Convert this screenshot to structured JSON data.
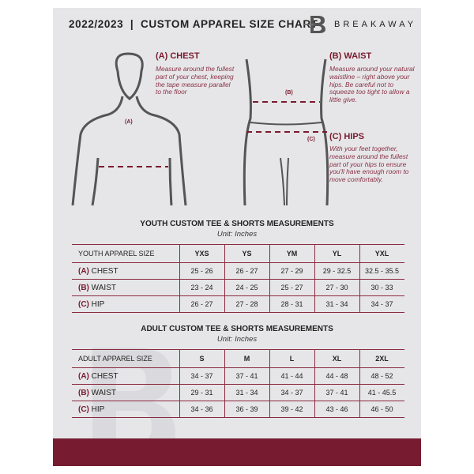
{
  "header": {
    "title": "2022/2023  |  CUSTOM APPAREL SIZE CHART",
    "brand": "BREAKAWAY",
    "logo_letter": "B"
  },
  "guide": {
    "chest": {
      "heading": "(A) CHEST",
      "marker": "(A)",
      "text": "Measure around the fullest part of your chest, keeping the tape measure parallel to the floor"
    },
    "waist": {
      "heading": "(B) WAIST",
      "marker": "(B)",
      "text": "Measure around your natural waistline – right above your hips. Be careful not to squeeze too tight to allow a little give."
    },
    "hips": {
      "heading": "(C) HIPS",
      "marker": "(C)",
      "text": "With your feet together, measure around the fullest part of your hips to ensure you'll have enough room to move comfortably."
    }
  },
  "youth": {
    "title": "YOUTH CUSTOM TEE & SHORTS MEASUREMENTS",
    "unit": "Unit: Inches",
    "header": "YOUTH APPAREL SIZE",
    "sizes": [
      "YXS",
      "YS",
      "YM",
      "YL",
      "YXL"
    ],
    "rows": [
      {
        "letter": "(A)",
        "name": "CHEST",
        "values": [
          "25 - 26",
          "26 - 27",
          "27 - 29",
          "29 - 32.5",
          "32.5 - 35.5"
        ]
      },
      {
        "letter": "(B)",
        "name": "WAIST",
        "values": [
          "23 - 24",
          "24 - 25",
          "25 - 27",
          "27 - 30",
          "30 - 33"
        ]
      },
      {
        "letter": "(C)",
        "name": "HIP",
        "values": [
          "26 - 27",
          "27 - 28",
          "28 - 31",
          "31 - 34",
          "34 - 37"
        ]
      }
    ]
  },
  "adult": {
    "title": "ADULT CUSTOM TEE & SHORTS MEASUREMENTS",
    "unit": "Unit: Inches",
    "header": "ADULT APPAREL SIZE",
    "sizes": [
      "S",
      "M",
      "L",
      "XL",
      "2XL"
    ],
    "rows": [
      {
        "letter": "(A)",
        "name": "CHEST",
        "values": [
          "34 - 37",
          "37 - 41",
          "41 - 44",
          "44 - 48",
          "48 - 52"
        ]
      },
      {
        "letter": "(B)",
        "name": "WAIST",
        "values": [
          "29 - 31",
          "31 - 34",
          "34 - 37",
          "37 - 41",
          "41 - 45.5"
        ]
      },
      {
        "letter": "(C)",
        "name": "HIP",
        "values": [
          "34 - 36",
          "36 - 39",
          "39 - 42",
          "43 - 46",
          "46 - 50"
        ]
      }
    ]
  },
  "colors": {
    "accent": "#761b30",
    "background": "#e6e6e8"
  }
}
